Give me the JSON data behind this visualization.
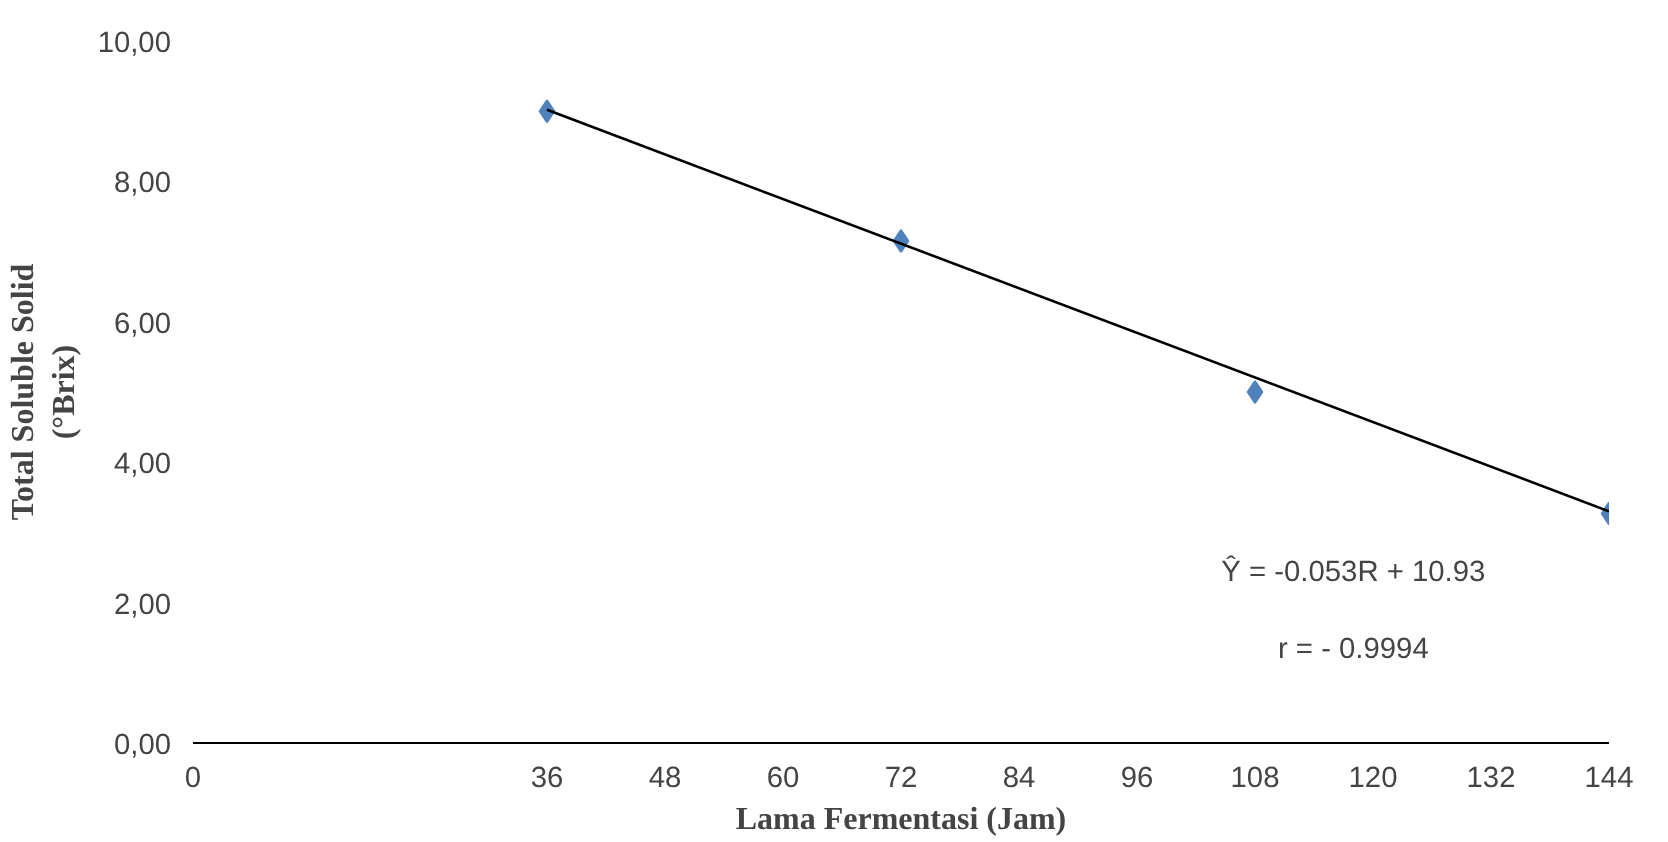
{
  "chart_data": {
    "type": "scatter",
    "xlabel": "Lama Fermentasi (Jam)",
    "ylabel": "Total Soluble Solid\n(°Brix)",
    "x": [
      36,
      72,
      108,
      144
    ],
    "series": [
      {
        "color": "#4f81bd",
        "values": [
          9.0,
          7.15,
          5.0,
          3.27
        ],
        "marker": "diamond"
      },
      {
        "type": "line",
        "color": "#000000",
        "x": [
          36,
          144
        ],
        "values": [
          9.02,
          3.3
        ],
        "marker": "none"
      }
    ],
    "xlim": [
      0,
      144
    ],
    "xticks": [
      0,
      36,
      48,
      60,
      72,
      84,
      96,
      108,
      120,
      132,
      144
    ],
    "ylim": [
      0,
      10
    ],
    "yticks": [
      {
        "value": 0,
        "label": "0,00"
      },
      {
        "value": 2,
        "label": "2,00"
      },
      {
        "value": 4,
        "label": "4,00"
      },
      {
        "value": 6,
        "label": "6,00"
      },
      {
        "value": 8,
        "label": "8,00"
      },
      {
        "value": 10,
        "label": "10,00"
      }
    ],
    "annotations": [
      "Ŷ = -0.053R + 10.93",
      "r = - 0.9994"
    ],
    "grid": false
  }
}
